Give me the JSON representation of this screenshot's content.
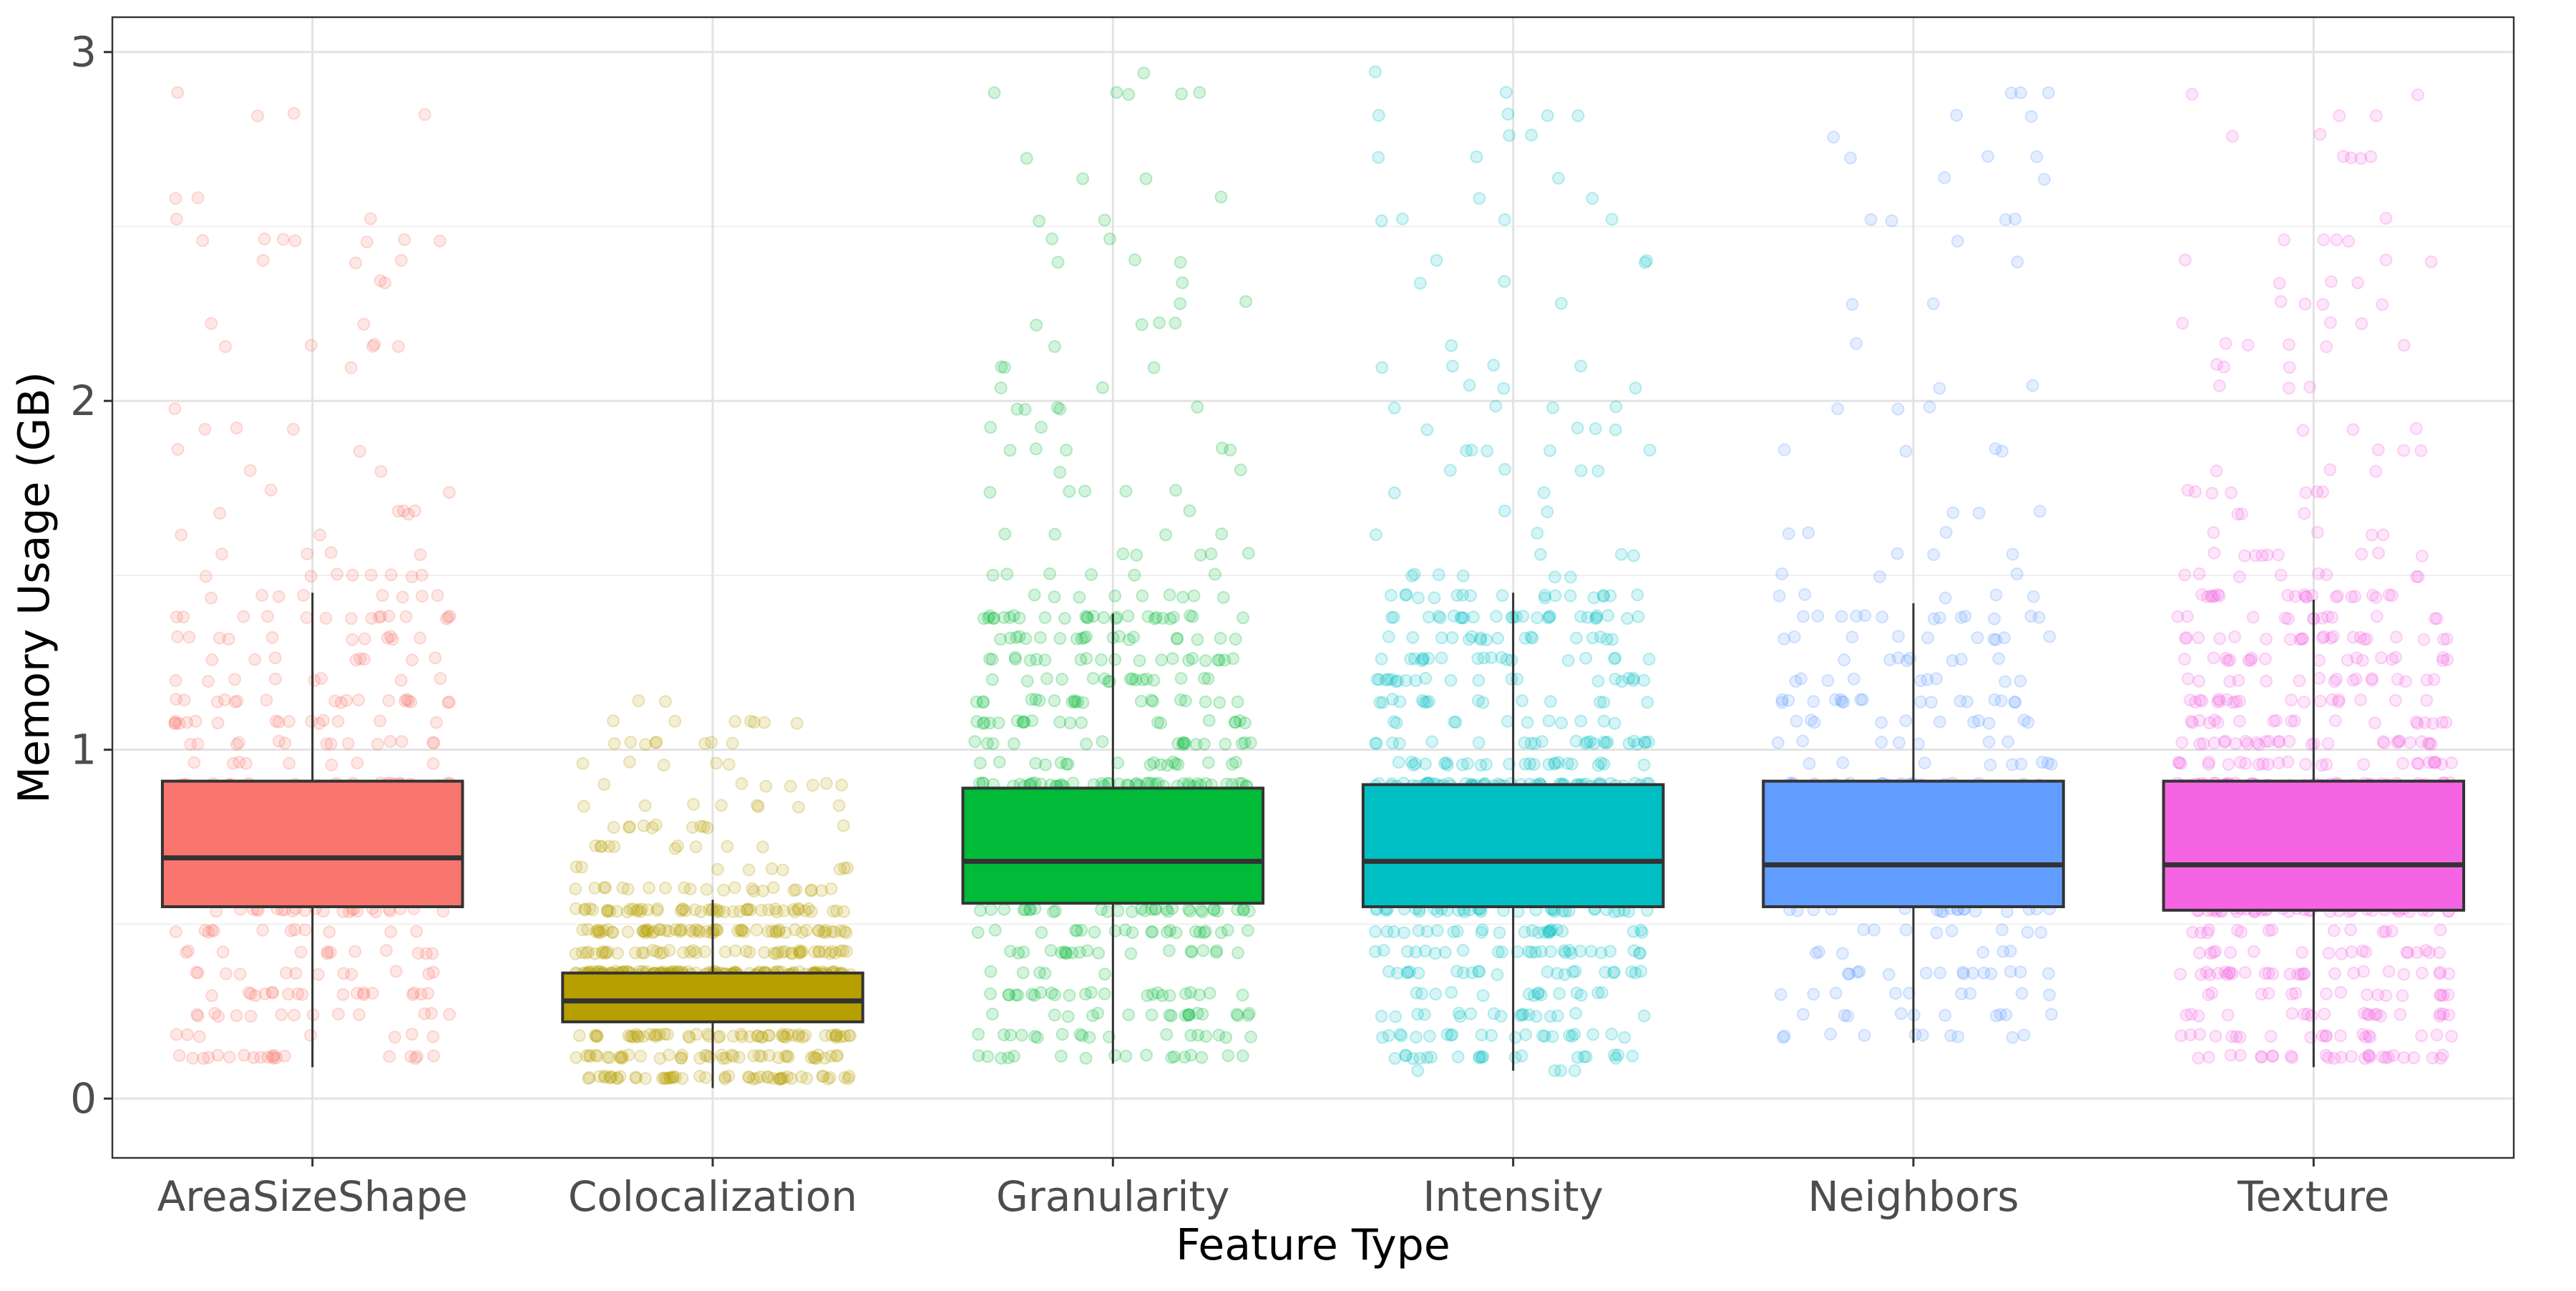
{
  "chart_data": {
    "type": "boxplot",
    "title": "",
    "xlabel": "Feature Type",
    "ylabel": "Memory Usage (GB)",
    "ylim": [
      -0.17,
      3.1
    ],
    "yticks": [
      0,
      1,
      2,
      3
    ],
    "ytick_labels": [
      "0",
      "1",
      "2",
      "3"
    ],
    "grid": true,
    "legend": "none",
    "categories": [
      "AreaSizeShape",
      "Colocalization",
      "Granularity",
      "Intensity",
      "Neighbors",
      "Texture"
    ],
    "boxes": [
      {
        "category": "AreaSizeShape",
        "color": "#F8766D",
        "whisker_low": 0.09,
        "q1": 0.55,
        "median": 0.69,
        "q3": 0.91,
        "whisker_high": 1.45,
        "min": 0.09,
        "max": 2.94,
        "density": 0.6
      },
      {
        "category": "Colocalization",
        "color": "#B79F00",
        "whisker_low": 0.03,
        "q1": 0.22,
        "median": 0.28,
        "q3": 0.36,
        "whisker_high": 0.57,
        "min": 0.03,
        "max": 1.14,
        "density": 1.0
      },
      {
        "category": "Granularity",
        "color": "#00BA38",
        "whisker_low": 0.1,
        "q1": 0.56,
        "median": 0.68,
        "q3": 0.89,
        "whisker_high": 1.39,
        "min": -0.03,
        "max": 2.93,
        "density": 0.9
      },
      {
        "category": "Intensity",
        "color": "#00BFC4",
        "whisker_low": 0.08,
        "q1": 0.55,
        "median": 0.68,
        "q3": 0.9,
        "whisker_high": 1.45,
        "min": 0.08,
        "max": 2.96,
        "density": 1.0
      },
      {
        "category": "Neighbors",
        "color": "#619CFF",
        "whisker_low": 0.16,
        "q1": 0.55,
        "median": 0.67,
        "q3": 0.91,
        "whisker_high": 1.42,
        "min": 0.16,
        "max": 2.9,
        "density": 0.45
      },
      {
        "category": "Texture",
        "color": "#F564E3",
        "whisker_low": 0.09,
        "q1": 0.54,
        "median": 0.67,
        "q3": 0.91,
        "whisker_high": 1.43,
        "min": 0.09,
        "max": 2.9,
        "density": 0.95
      }
    ]
  }
}
